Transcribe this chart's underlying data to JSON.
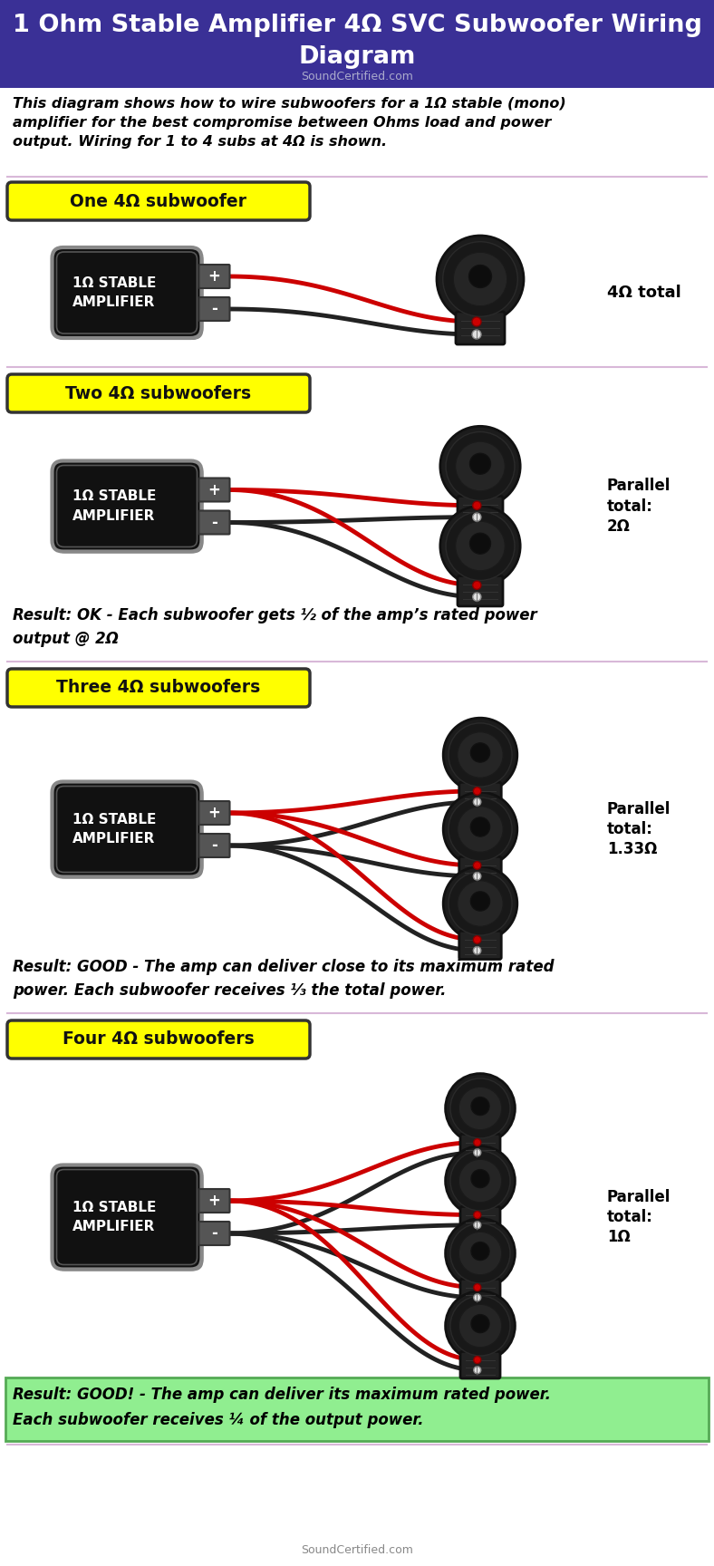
{
  "title_line1": "1 Ohm Stable Amplifier 4Ω SVC Subwoofer Wiring",
  "title_line2": "Diagram",
  "subtitle": "SoundCertified.com",
  "header_bg": "#3a3096",
  "description": "This diagram shows how to wire subwoofers for a 1Ω stable (mono)\namplifier for the best compromise between Ohms load and power\noutput. Wiring for 1 to 4 subs at 4Ω is shown.",
  "section_label_bg": "#ffff00",
  "sections": [
    {
      "label": "One 4Ω subwoofer",
      "num_subs": 1,
      "result_text": null,
      "result_bg": null,
      "parallel_text": "4Ω total"
    },
    {
      "label": "Two 4Ω subwoofers",
      "num_subs": 2,
      "result_text": "Result: OK - Each subwoofer gets ½ of the amp’s rated power\noutput @ 2Ω",
      "result_bg": "#ffffff",
      "parallel_text": "Parallel\ntotal:\n2Ω"
    },
    {
      "label": "Three 4Ω subwoofers",
      "num_subs": 3,
      "result_text": "Result: GOOD - The amp can deliver close to its maximum rated\npower. Each subwoofer receives ⅓ the total power.",
      "result_bg": "#ffffff",
      "parallel_text": "Parallel\ntotal:\n1.33Ω"
    },
    {
      "label": "Four 4Ω subwoofers",
      "num_subs": 4,
      "result_text": "Result: GOOD! - The amp can deliver its maximum rated power.\nEach subwoofer receives ¼ of the output power.",
      "result_bg": "#90ee90",
      "parallel_text": "Parallel\ntotal:\n1Ω"
    }
  ],
  "amp_bg": "#111111",
  "amp_border": "#888888",
  "wire_red": "#cc0000",
  "wire_black": "#111111",
  "connector_red": "#cc0000",
  "connector_white": "#dddddd",
  "bg_color": "#ffffff",
  "sep_color": "#d8b8d8",
  "footer": "SoundCertified.com"
}
